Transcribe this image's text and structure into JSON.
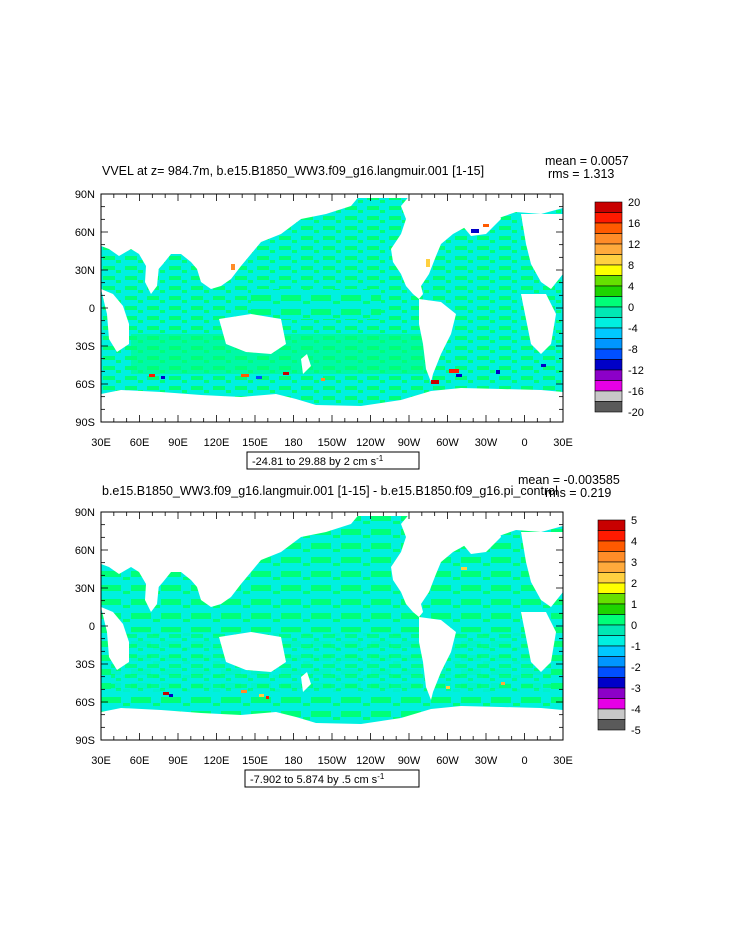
{
  "panel1": {
    "title": "VVEL at z= 984.7m, b.e15.B1850_WW3.f09_g16.langmuir.001 [1-15]",
    "mean_text": "mean = 0.0057",
    "rms_text": "rms = 1.313",
    "range_text": "-24.81 to 29.88 by 2 cm s",
    "units_sup": "-1",
    "colorbar_labels": [
      "20",
      "16",
      "12",
      "8",
      "4",
      "0",
      "-4",
      "-8",
      "-12",
      "-16",
      "-20"
    ],
    "colorbar_colors": [
      "#c80000",
      "#ff1a00",
      "#ff5a00",
      "#ff8c28",
      "#ffaa3c",
      "#ffd040",
      "#ffff00",
      "#66e000",
      "#1ed400",
      "#00ff78",
      "#00e8b4",
      "#00f0e0",
      "#00c8ff",
      "#0096ff",
      "#0050ff",
      "#0000c8",
      "#8c00c8",
      "#e600e6",
      "#c8c8c8",
      "#5a5a5a"
    ]
  },
  "panel2": {
    "title": "b.e15.B1850_WW3.f09_g16.langmuir.001 [1-15] - b.e15.B1850.f09_g16.pi_control",
    "mean_text": "mean = -0.003585",
    "rms_text": "rms = 0.219",
    "range_text": "-7.902 to 5.874 by .5 cm s",
    "units_sup": "-1",
    "colorbar_labels": [
      "5",
      "4",
      "3",
      "2",
      "1",
      "0",
      "-1",
      "-2",
      "-3",
      "-4",
      "-5"
    ],
    "colorbar_colors": [
      "#c80000",
      "#ff1a00",
      "#ff5a00",
      "#ff8c28",
      "#ffaa3c",
      "#ffd040",
      "#ffff00",
      "#66e000",
      "#1ed400",
      "#00ff78",
      "#00e8b4",
      "#00f0e0",
      "#00c8ff",
      "#0096ff",
      "#0050ff",
      "#0000c8",
      "#8c00c8",
      "#e600e6",
      "#c8c8c8",
      "#5a5a5a"
    ]
  },
  "lat_labels": [
    "90N",
    "60N",
    "30N",
    "0",
    "30S",
    "60S",
    "90S"
  ],
  "lon_labels": [
    "30E",
    "60E",
    "90E",
    "120E",
    "150E",
    "180",
    "150W",
    "120W",
    "90W",
    "60W",
    "30W",
    "0",
    "30E"
  ],
  "colors": {
    "ocean_cyan": "#00f0e0",
    "ocean_green": "#00ff78",
    "land": "#ffffff"
  }
}
